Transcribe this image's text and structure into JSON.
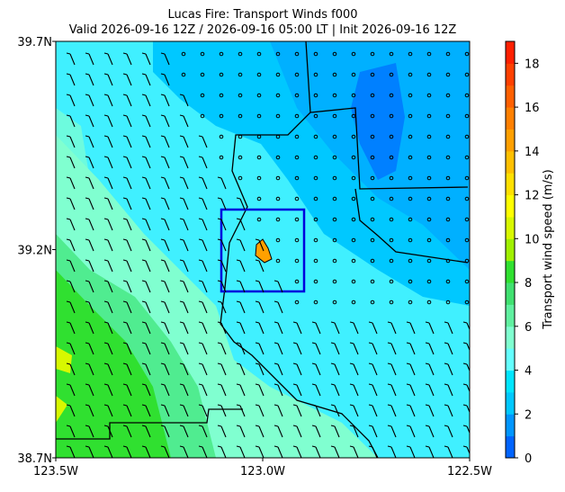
{
  "chart_data": {
    "type": "map",
    "title": "Lucas Fire: Transport Winds f000",
    "subtitle": "Valid 2026-09-16 12Z / 2026-09-16 05:00 LT | Init 2026-09-16 12Z",
    "xlim": [
      -123.5,
      -122.5
    ],
    "xticks": [
      {
        "value": -123.5,
        "label": "123.5W"
      },
      {
        "value": -123.0,
        "label": "123.0W"
      },
      {
        "value": -122.5,
        "label": "122.5W"
      }
    ],
    "ylim": [
      38.7,
      39.7
    ],
    "yticks": [
      {
        "value": 38.7,
        "label": "38.7N"
      },
      {
        "value": 39.2,
        "label": "39.2N"
      },
      {
        "value": 39.7,
        "label": "39.7N"
      }
    ],
    "colorbar": {
      "label": "Transport wind speed (m/s)",
      "lim": [
        0,
        19
      ],
      "ticks": [
        0,
        2,
        4,
        6,
        8,
        10,
        12,
        14,
        16,
        18
      ],
      "colors": [
        "#0064ff",
        "#0096ff",
        "#00c8ff",
        "#00e6ff",
        "#64ffff",
        "#80ffd0",
        "#60f0a0",
        "#40e070",
        "#30e030",
        "#a0f000",
        "#d8f800",
        "#ffff00",
        "#ffe000",
        "#ffc000",
        "#ffa000",
        "#ff8000",
        "#ff6000",
        "#ff4000",
        "#ff2000"
      ]
    }
  }
}
